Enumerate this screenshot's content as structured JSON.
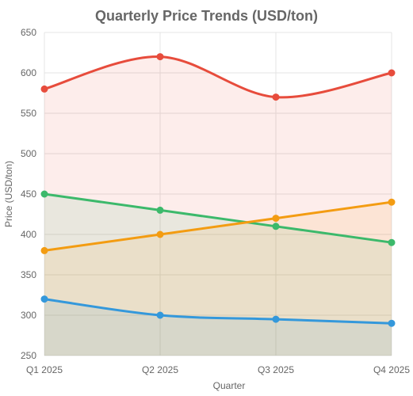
{
  "chart_data": {
    "type": "line",
    "title": "Quarterly Price Trends (USD/ton)",
    "xlabel": "Quarter",
    "ylabel": "Price (USD/ton)",
    "categories": [
      "Q1 2025",
      "Q2 2025",
      "Q3 2025",
      "Q4 2025"
    ],
    "ylim": [
      250,
      650
    ],
    "yticks": [
      250,
      300,
      350,
      400,
      450,
      500,
      550,
      600,
      650
    ],
    "grid": true,
    "legend": "none",
    "series": [
      {
        "values": [
          580,
          620,
          570,
          600
        ],
        "color": "#e74c3c",
        "fill": "rgba(231,76,60,0.10)",
        "smooth": true
      },
      {
        "values": [
          450,
          430,
          410,
          390
        ],
        "color": "#3cb96b",
        "fill": "rgba(60,185,107,0.10)",
        "smooth": false
      },
      {
        "values": [
          380,
          400,
          420,
          440
        ],
        "color": "#f39c12",
        "fill": "rgba(243,156,18,0.10)",
        "smooth": false
      },
      {
        "values": [
          320,
          300,
          295,
          290
        ],
        "color": "#3498db",
        "fill": "rgba(52,152,219,0.10)",
        "smooth": true
      }
    ]
  }
}
